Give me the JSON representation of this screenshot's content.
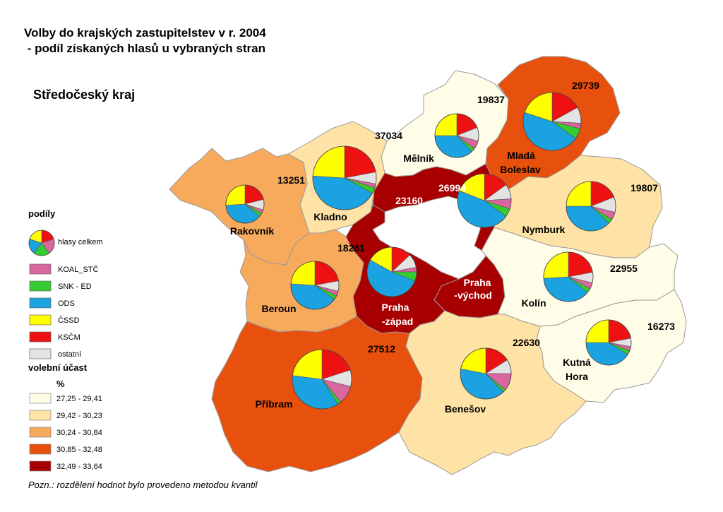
{
  "title": {
    "line1": "Volby do krajských zastupitelstev v r. 2004",
    "line2": " - podíl získaných hlasů u vybraných stran"
  },
  "region_title": "Středočeský kraj",
  "note": "Pozn.: rozdělení hodnot bylo provedeno metodou kvantil",
  "colors": {
    "KOAL_STC": "#d9669e",
    "SNK_ED": "#33cc33",
    "ODS": "#1aa3e0",
    "CSSD": "#ffff00",
    "KSCM": "#ee1111",
    "ostatni": "#e3e3e3",
    "turnout": [
      "#fffce8",
      "#ffe3a6",
      "#f7a95c",
      "#e8500d",
      "#a80000"
    ]
  },
  "legend": {
    "share_heading": "podíly",
    "pie_label": "hlasy celkem",
    "parties": [
      {
        "key": "KOAL_STC",
        "label": "KOAL_STČ"
      },
      {
        "key": "SNK_ED",
        "label": "SNK - ED"
      },
      {
        "key": "ODS",
        "label": "ODS"
      },
      {
        "key": "CSSD",
        "label": "ČSSD"
      },
      {
        "key": "KSCM",
        "label": "KSČM"
      },
      {
        "key": "ostatni",
        "label": "ostatní"
      }
    ],
    "turnout_heading": "volební účast",
    "turnout_unit": "%",
    "turnout_classes": [
      "27,25 - 29,41",
      "29,42 - 30,23",
      "30,24 - 30,84",
      "30,85 - 32,48",
      "32,49 - 33,64"
    ]
  },
  "districts": [
    {
      "key": "rakovnik",
      "name": [
        "Rakovník"
      ],
      "total": "13251",
      "turnout_class": 2,
      "shares": {
        "KSCM": 21,
        "ostatni": 9,
        "KOAL_STC": 3,
        "SNK_ED": 3,
        "ODS": 38,
        "CSSD": 26
      }
    },
    {
      "key": "kladno",
      "name": [
        "Kladno"
      ],
      "total": "37034",
      "turnout_class": 1,
      "shares": {
        "KSCM": 22,
        "ostatni": 6,
        "KOAL_STC": 2,
        "SNK_ED": 3,
        "ODS": 43,
        "CSSD": 24
      }
    },
    {
      "key": "melnik",
      "name": [
        "Mělník"
      ],
      "total": "19837",
      "turnout_class": 0,
      "shares": {
        "KSCM": 19,
        "ostatni": 10,
        "KOAL_STC": 6,
        "SNK_ED": 3,
        "ODS": 37,
        "CSSD": 25
      }
    },
    {
      "key": "mlada_boleslav",
      "name": [
        "Mladá",
        "Boleslav"
      ],
      "total": "29739",
      "turnout_class": 3,
      "shares": {
        "KSCM": 17,
        "ostatni": 9,
        "KOAL_STC": 3,
        "SNK_ED": 6,
        "ODS": 45,
        "CSSD": 20
      }
    },
    {
      "key": "nymburk",
      "name": [
        "Nymburk"
      ],
      "total": "19807",
      "turnout_class": 1,
      "shares": {
        "KSCM": 19,
        "ostatni": 10,
        "KOAL_STC": 5,
        "SNK_ED": 3,
        "ODS": 38,
        "CSSD": 25
      }
    },
    {
      "key": "praha_vychod",
      "name": [
        "Praha",
        "-východ"
      ],
      "total": "26994",
      "turnout_class": 4,
      "shares": {
        "KSCM": 15,
        "ostatni": 9,
        "KOAL_STC": 6,
        "SNK_ED": 5,
        "ODS": 46,
        "CSSD": 19
      }
    },
    {
      "key": "praha_zapad",
      "name": [
        "Praha",
        "-západ"
      ],
      "total": "23160",
      "turnout_class": 4,
      "shares": {
        "KSCM": 13,
        "ostatni": 9,
        "KOAL_STC": 3,
        "SNK_ED": 6,
        "ODS": 52,
        "CSSD": 17
      }
    },
    {
      "key": "beroun",
      "name": [
        "Beroun"
      ],
      "total": "18261",
      "turnout_class": 2,
      "shares": {
        "KSCM": 22,
        "ostatni": 7,
        "KOAL_STC": 3,
        "SNK_ED": 3,
        "ODS": 41,
        "CSSD": 24
      }
    },
    {
      "key": "kolin",
      "name": [
        "Kolín"
      ],
      "total": "22955",
      "turnout_class": 0,
      "shares": {
        "KSCM": 22,
        "ostatni": 7,
        "KOAL_STC": 4,
        "SNK_ED": 3,
        "ODS": 38,
        "CSSD": 26
      }
    },
    {
      "key": "kutna_hora",
      "name": [
        "Kutná",
        "Hora"
      ],
      "total": "16273",
      "turnout_class": 0,
      "shares": {
        "KSCM": 22,
        "ostatni": 6,
        "KOAL_STC": 3,
        "SNK_ED": 3,
        "ODS": 41,
        "CSSD": 25
      }
    },
    {
      "key": "pribram",
      "name": [
        "Příbram"
      ],
      "total": "27512",
      "turnout_class": 3,
      "shares": {
        "KSCM": 20,
        "ostatni": 9,
        "KOAL_STC": 10,
        "SNK_ED": 2,
        "ODS": 36,
        "CSSD": 23
      }
    },
    {
      "key": "benesov",
      "name": [
        "Benešov"
      ],
      "total": "22630",
      "turnout_class": 1,
      "shares": {
        "KSCM": 16,
        "ostatni": 9,
        "KOAL_STC": 11,
        "SNK_ED": 2,
        "ODS": 40,
        "CSSD": 22
      }
    }
  ]
}
